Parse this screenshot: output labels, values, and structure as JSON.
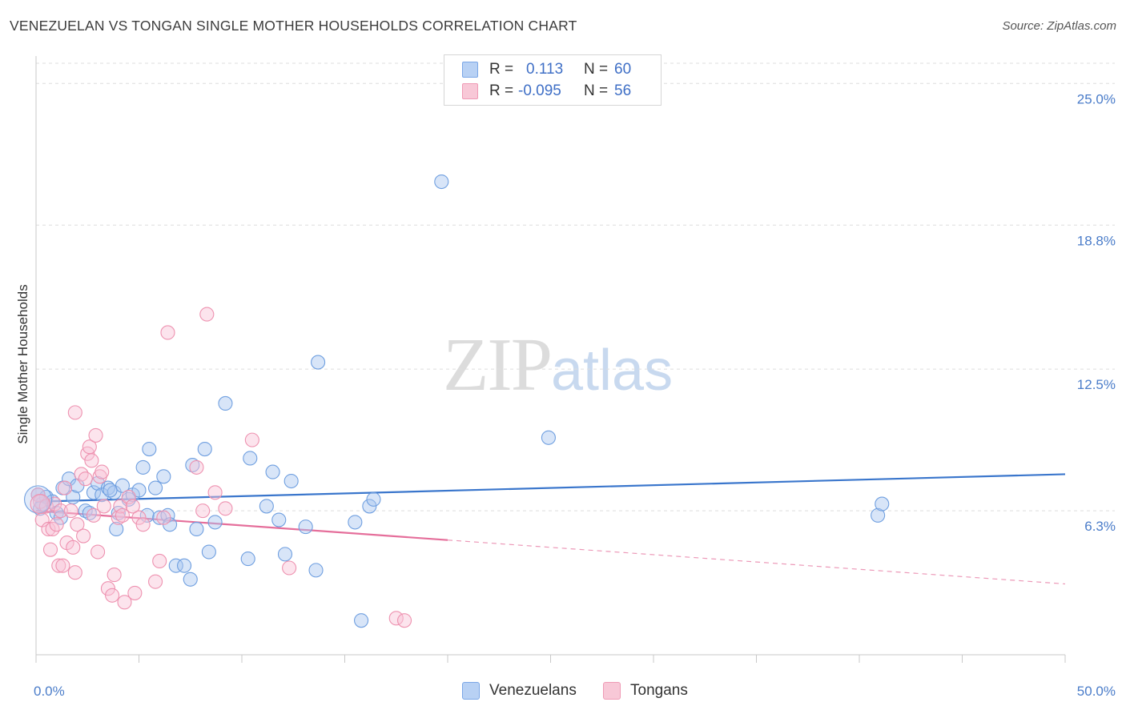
{
  "header": {
    "title": "VENEZUELAN VS TONGAN SINGLE MOTHER HOUSEHOLDS CORRELATION CHART",
    "source": "Source: ZipAtlas.com"
  },
  "watermark": {
    "zip": "ZIP",
    "atlas": "atlas"
  },
  "legend": {
    "rows": [
      {
        "r_label": "R =",
        "r_value": "0.113",
        "n_label": "N =",
        "n_value": "60",
        "color": "#7aa6e6",
        "fill": "#b8d1f4"
      },
      {
        "r_label": "R =",
        "r_value": "-0.095",
        "n_label": "N =",
        "n_value": "56",
        "color": "#ef9ab5",
        "fill": "#f8c8d7"
      }
    ],
    "bottom": [
      {
        "label": "Venezuelans",
        "color": "#7aa6e6",
        "fill": "#b8d1f4"
      },
      {
        "label": "Tongans",
        "color": "#ef9ab5",
        "fill": "#f8c8d7"
      }
    ]
  },
  "chart_data": {
    "type": "scatter",
    "title": "VENEZUELAN VS TONGAN SINGLE MOTHER HOUSEHOLDS CORRELATION CHART",
    "xlabel": "",
    "ylabel": "Single Mother Households",
    "xlim": [
      0,
      50
    ],
    "ylim": [
      0,
      26.2
    ],
    "x_tick_labels": [
      "0.0%",
      "50.0%"
    ],
    "y_ticks": [
      6.3,
      12.5,
      18.8,
      25.0
    ],
    "y_tick_labels": [
      "6.3%",
      "12.5%",
      "18.8%",
      "25.0%"
    ],
    "grid": true,
    "colors": {
      "blue": "#3a76cc",
      "pink": "#e56f9b"
    },
    "series": [
      {
        "name": "Venezuelans",
        "trend": {
          "x": [
            0,
            50
          ],
          "y": [
            6.7,
            7.9
          ],
          "solid_to": 50
        },
        "points": [
          [
            0.1,
            7.0
          ],
          [
            0.3,
            6.6
          ],
          [
            0.5,
            6.9
          ],
          [
            0.8,
            6.7
          ],
          [
            1.0,
            6.2
          ],
          [
            1.2,
            6.0
          ],
          [
            1.3,
            7.3
          ],
          [
            1.6,
            7.7
          ],
          [
            1.8,
            6.9
          ],
          [
            2.0,
            7.4
          ],
          [
            2.4,
            6.3
          ],
          [
            2.8,
            7.1
          ],
          [
            3.0,
            7.5
          ],
          [
            3.2,
            7.0
          ],
          [
            3.5,
            7.3
          ],
          [
            3.8,
            7.1
          ],
          [
            3.9,
            5.5
          ],
          [
            4.0,
            6.2
          ],
          [
            4.2,
            7.4
          ],
          [
            4.5,
            6.8
          ],
          [
            4.7,
            7.0
          ],
          [
            5.0,
            7.2
          ],
          [
            5.2,
            8.2
          ],
          [
            5.4,
            6.1
          ],
          [
            5.5,
            9.0
          ],
          [
            5.8,
            7.3
          ],
          [
            6.0,
            6.0
          ],
          [
            6.2,
            7.8
          ],
          [
            6.4,
            6.1
          ],
          [
            6.5,
            5.7
          ],
          [
            6.8,
            3.9
          ],
          [
            7.2,
            3.9
          ],
          [
            7.5,
            3.3
          ],
          [
            7.6,
            8.3
          ],
          [
            7.8,
            5.5
          ],
          [
            8.2,
            9.0
          ],
          [
            8.4,
            4.5
          ],
          [
            8.7,
            5.8
          ],
          [
            9.2,
            11.0
          ],
          [
            10.3,
            4.2
          ],
          [
            10.4,
            8.6
          ],
          [
            11.2,
            6.5
          ],
          [
            11.5,
            8.0
          ],
          [
            11.8,
            5.9
          ],
          [
            12.1,
            4.4
          ],
          [
            12.4,
            7.6
          ],
          [
            13.1,
            5.6
          ],
          [
            13.6,
            3.7
          ],
          [
            13.7,
            12.8
          ],
          [
            15.5,
            5.8
          ],
          [
            15.8,
            1.5
          ],
          [
            16.2,
            6.5
          ],
          [
            16.4,
            6.8
          ],
          [
            19.7,
            20.7
          ],
          [
            24.9,
            9.5
          ],
          [
            40.9,
            6.1
          ],
          [
            41.1,
            6.6
          ],
          [
            0.2,
            6.4
          ],
          [
            2.6,
            6.2
          ],
          [
            3.6,
            7.2
          ]
        ]
      },
      {
        "name": "Tongans",
        "trend": {
          "x": [
            0,
            50
          ],
          "y": [
            6.3,
            3.1
          ],
          "solid_to": 20
        },
        "points": [
          [
            0.1,
            7.0
          ],
          [
            0.2,
            6.7
          ],
          [
            0.3,
            5.9
          ],
          [
            0.5,
            6.5
          ],
          [
            0.6,
            5.5
          ],
          [
            0.7,
            4.6
          ],
          [
            0.8,
            5.5
          ],
          [
            0.9,
            6.6
          ],
          [
            1.0,
            5.7
          ],
          [
            1.1,
            3.9
          ],
          [
            1.2,
            6.3
          ],
          [
            1.3,
            3.9
          ],
          [
            1.4,
            7.3
          ],
          [
            1.5,
            4.9
          ],
          [
            1.7,
            6.3
          ],
          [
            1.8,
            4.7
          ],
          [
            1.9,
            3.6
          ],
          [
            1.9,
            10.6
          ],
          [
            2.0,
            5.7
          ],
          [
            2.2,
            7.9
          ],
          [
            2.3,
            5.2
          ],
          [
            2.4,
            7.7
          ],
          [
            2.5,
            8.8
          ],
          [
            2.6,
            9.1
          ],
          [
            2.7,
            8.5
          ],
          [
            2.8,
            6.1
          ],
          [
            2.9,
            9.6
          ],
          [
            3.0,
            4.5
          ],
          [
            3.1,
            7.8
          ],
          [
            3.2,
            8.0
          ],
          [
            3.3,
            6.5
          ],
          [
            3.5,
            2.9
          ],
          [
            3.7,
            2.6
          ],
          [
            3.8,
            3.5
          ],
          [
            4.0,
            6.0
          ],
          [
            4.1,
            6.5
          ],
          [
            4.2,
            6.1
          ],
          [
            4.3,
            2.3
          ],
          [
            4.5,
            6.9
          ],
          [
            4.7,
            6.5
          ],
          [
            4.8,
            2.7
          ],
          [
            5.0,
            6.0
          ],
          [
            5.2,
            5.7
          ],
          [
            5.8,
            3.2
          ],
          [
            6.0,
            4.1
          ],
          [
            6.2,
            6.0
          ],
          [
            6.4,
            14.1
          ],
          [
            7.8,
            8.2
          ],
          [
            8.1,
            6.3
          ],
          [
            8.3,
            14.9
          ],
          [
            8.7,
            7.1
          ],
          [
            9.2,
            6.4
          ],
          [
            10.5,
            9.4
          ],
          [
            12.3,
            3.8
          ],
          [
            17.5,
            1.6
          ],
          [
            17.9,
            1.5
          ]
        ]
      }
    ]
  }
}
